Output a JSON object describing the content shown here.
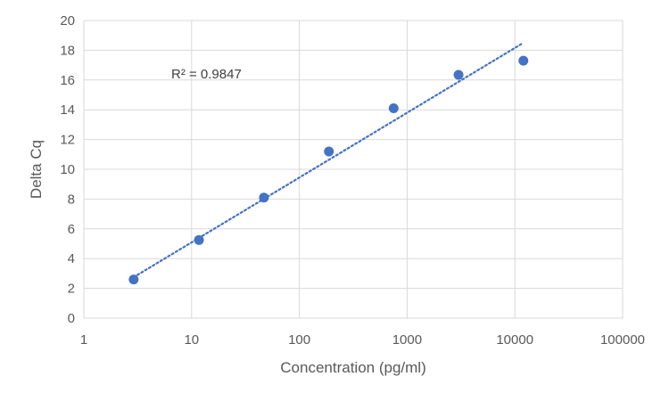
{
  "chart_data": {
    "type": "scatter",
    "title": "",
    "xlabel": "Concentration (pg/ml)",
    "ylabel": "Delta Cq",
    "x_scale": "log",
    "xlim": [
      1,
      100000
    ],
    "ylim": [
      0,
      20
    ],
    "x_ticks": [
      1,
      10,
      100,
      1000,
      10000,
      100000
    ],
    "x_tick_labels": [
      "1",
      "10",
      "100",
      "1000",
      "10000",
      "100000"
    ],
    "y_ticks": [
      0,
      2,
      4,
      6,
      8,
      10,
      12,
      14,
      16,
      18,
      20
    ],
    "y_tick_labels": [
      "0",
      "2",
      "4",
      "6",
      "8",
      "10",
      "12",
      "14",
      "16",
      "18",
      "20"
    ],
    "grid": true,
    "legend": "none",
    "series": [
      {
        "color": "#4472C4",
        "points": [
          {
            "x": 2.9,
            "y": 2.6
          },
          {
            "x": 11.7,
            "y": 5.25
          },
          {
            "x": 46.9,
            "y": 8.1
          },
          {
            "x": 188,
            "y": 11.2
          },
          {
            "x": 750,
            "y": 14.1
          },
          {
            "x": 3000,
            "y": 16.35
          },
          {
            "x": 12000,
            "y": 17.3
          }
        ]
      }
    ],
    "trendline": {
      "type": "logarithmic",
      "style": "dotted",
      "color": "#4472C4",
      "x_range": [
        2.9,
        12000
      ],
      "y_range": [
        2.75,
        18.5
      ]
    },
    "annotations": [
      {
        "text": "R² = 0.9847"
      }
    ]
  }
}
